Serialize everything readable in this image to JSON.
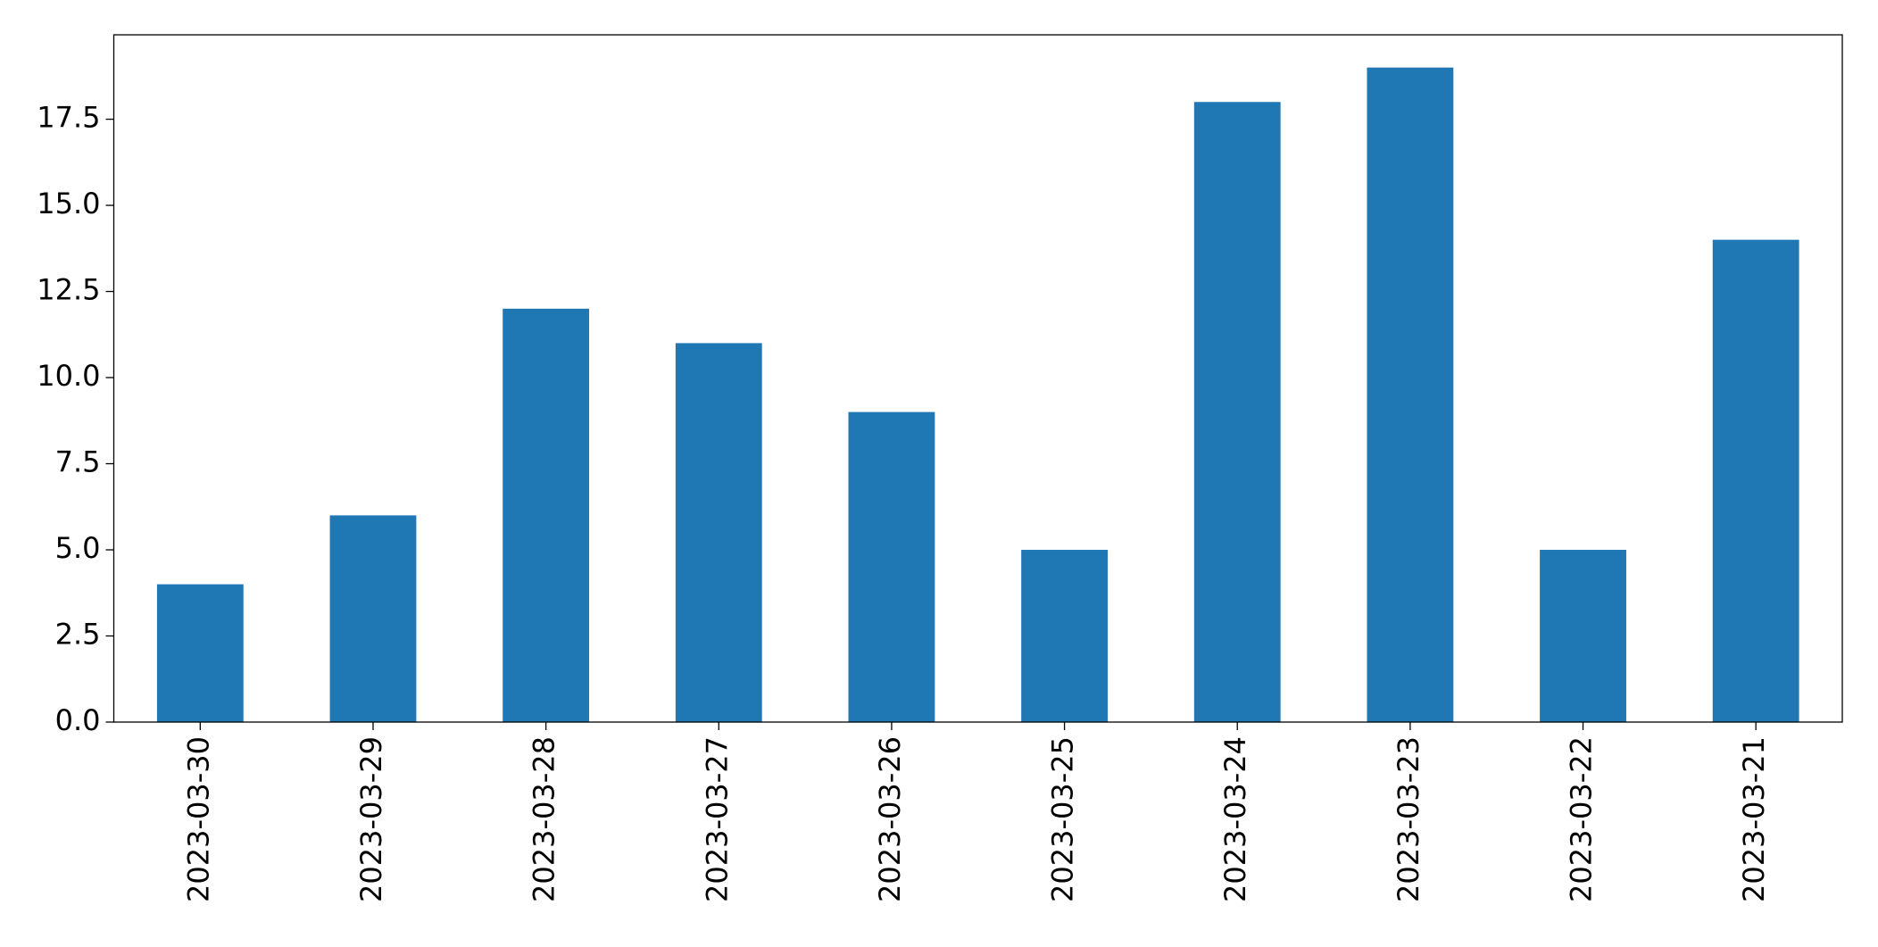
{
  "chart_data": {
    "type": "bar",
    "categories": [
      "2023-03-30",
      "2023-03-29",
      "2023-03-28",
      "2023-03-27",
      "2023-03-26",
      "2023-03-25",
      "2023-03-24",
      "2023-03-23",
      "2023-03-22",
      "2023-03-21"
    ],
    "values": [
      4,
      6,
      12,
      11,
      9,
      5,
      18,
      19,
      5,
      14
    ],
    "color": "#1f77b4",
    "ylim": [
      0,
      19.95
    ],
    "yticks": [
      {
        "value": 0,
        "label": "0.0"
      },
      2.5,
      {
        "value": 5,
        "label": "5.0"
      },
      7.5,
      {
        "value": 10,
        "label": "10.0"
      },
      12.5,
      {
        "value": 15,
        "label": "15.0"
      },
      17.5
    ],
    "grid": false
  }
}
